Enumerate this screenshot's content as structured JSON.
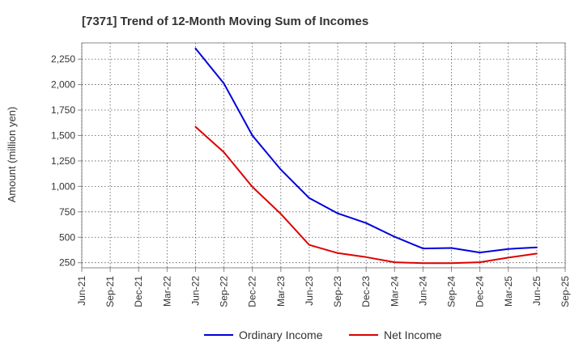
{
  "chart_data": {
    "type": "line",
    "title": "[7371]  Trend of 12-Month Moving Sum of Incomes",
    "xlabel": "",
    "ylabel": "Amount (million yen)",
    "x": [
      "Jun-21",
      "Sep-21",
      "Dec-21",
      "Mar-22",
      "Jun-22",
      "Sep-22",
      "Dec-22",
      "Mar-23",
      "Jun-23",
      "Sep-23",
      "Dec-23",
      "Mar-24",
      "Jun-24",
      "Sep-24",
      "Dec-24",
      "Mar-25",
      "Jun-25",
      "Sep-25"
    ],
    "yticks": [
      250,
      500,
      750,
      1000,
      1250,
      1500,
      1750,
      2000,
      2250
    ],
    "ytick_labels": [
      "250",
      "500",
      "750",
      "1,000",
      "1,250",
      "1,500",
      "1,750",
      "2,000",
      "2,250"
    ],
    "ylim": [
      200,
      2410
    ],
    "grid": true,
    "legend_position": "bottom",
    "series": [
      {
        "name": "Ordinary Income",
        "color": "#0000dd",
        "values": [
          null,
          null,
          null,
          null,
          2355,
          2010,
          1500,
          1165,
          885,
          735,
          640,
          505,
          390,
          395,
          350,
          385,
          400,
          null
        ]
      },
      {
        "name": "Net Income",
        "color": "#dd0000",
        "values": [
          null,
          null,
          null,
          null,
          1585,
          1335,
          995,
          730,
          425,
          345,
          305,
          255,
          245,
          245,
          255,
          300,
          340,
          null
        ]
      }
    ]
  }
}
